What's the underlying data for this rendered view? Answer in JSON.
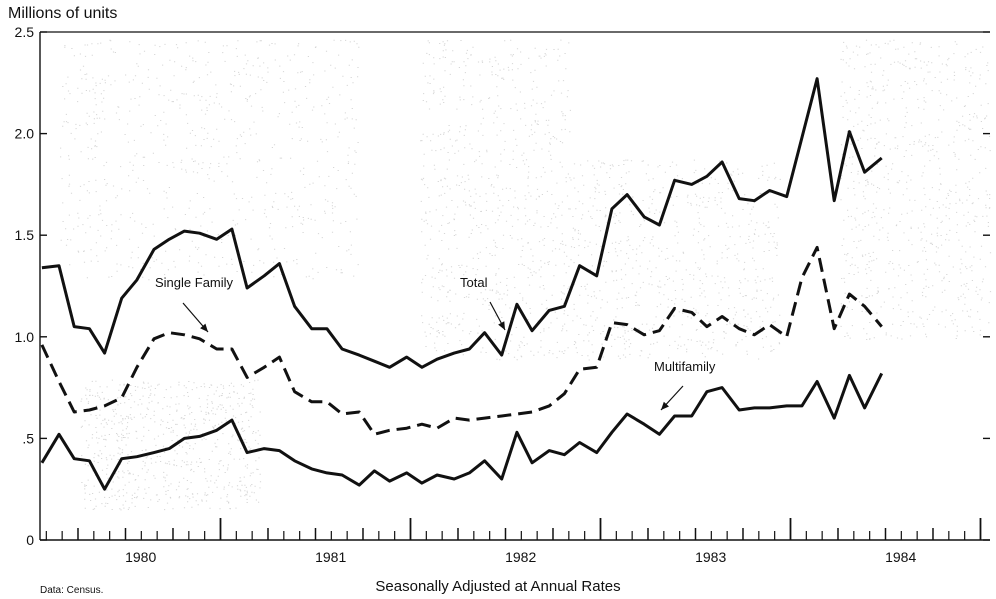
{
  "chart_data": {
    "type": "line",
    "title": "",
    "unit_label": "Millions of units",
    "xlabel": "Seasonally Adjusted at Annual Rates",
    "source": "Data: Census.",
    "ylim": [
      0,
      2.5
    ],
    "y_ticks": [
      0,
      0.5,
      1.0,
      1.5,
      2.0,
      2.5
    ],
    "y_tick_labels": [
      "0",
      ".5",
      "1.0",
      "1.5",
      "2.0",
      "2.5"
    ],
    "xlim": [
      1979.55,
      1984.55
    ],
    "x_ticks": [
      1980,
      1981,
      1982,
      1983,
      1984
    ],
    "x_tick_labels": [
      "1980",
      "1981",
      "1982",
      "1983",
      "1984"
    ],
    "grid": false,
    "series": [
      {
        "name": "Total",
        "style": "solid",
        "x": [
          1979.56,
          1979.65,
          1979.73,
          1979.81,
          1979.89,
          1979.98,
          1980.06,
          1980.15,
          1980.23,
          1980.31,
          1980.39,
          1980.48,
          1980.56,
          1980.64,
          1980.73,
          1980.81,
          1980.89,
          1980.98,
          1981.06,
          1981.14,
          1981.23,
          1981.31,
          1981.39,
          1981.48,
          1981.56,
          1981.64,
          1981.73,
          1981.81,
          1981.89,
          1981.98,
          1982.06,
          1982.14,
          1982.23,
          1982.31,
          1982.39,
          1982.48,
          1982.56,
          1982.64,
          1982.73,
          1982.81,
          1982.89,
          1982.98,
          1983.06,
          1983.14,
          1983.23,
          1983.31,
          1983.39,
          1983.48,
          1983.56,
          1983.64,
          1983.73,
          1983.81,
          1983.89,
          1983.98
        ],
        "values": [
          1.34,
          1.35,
          1.05,
          1.04,
          0.92,
          1.19,
          1.28,
          1.43,
          1.48,
          1.52,
          1.51,
          1.48,
          1.53,
          1.24,
          1.3,
          1.36,
          1.15,
          1.04,
          1.04,
          0.94,
          0.91,
          0.88,
          0.85,
          0.9,
          0.85,
          0.89,
          0.92,
          0.94,
          1.02,
          0.91,
          1.16,
          1.03,
          1.13,
          1.15,
          1.35,
          1.3,
          1.63,
          1.7,
          1.59,
          1.55,
          1.77,
          1.75,
          1.79,
          1.86,
          1.68,
          1.67,
          1.72,
          1.69,
          1.98,
          2.27,
          1.67,
          2.01,
          1.81,
          1.88
        ]
      },
      {
        "name": "Single Family",
        "style": "dashed",
        "x": [
          1979.56,
          1979.65,
          1979.73,
          1979.81,
          1979.89,
          1979.98,
          1980.06,
          1980.15,
          1980.23,
          1980.31,
          1980.39,
          1980.48,
          1980.56,
          1980.64,
          1980.73,
          1980.81,
          1980.89,
          1980.98,
          1981.06,
          1981.14,
          1981.23,
          1981.31,
          1981.39,
          1981.48,
          1981.56,
          1981.64,
          1981.73,
          1981.81,
          1981.89,
          1981.98,
          1982.06,
          1982.14,
          1982.23,
          1982.31,
          1982.39,
          1982.48,
          1982.56,
          1982.64,
          1982.73,
          1982.81,
          1982.89,
          1982.98,
          1983.06,
          1983.14,
          1983.23,
          1983.31,
          1983.39,
          1983.48,
          1983.56,
          1983.64,
          1983.73,
          1983.81,
          1983.89,
          1983.98
        ],
        "values": [
          0.96,
          0.78,
          0.63,
          0.64,
          0.66,
          0.7,
          0.85,
          0.99,
          1.02,
          1.01,
          0.99,
          0.94,
          0.94,
          0.8,
          0.85,
          0.9,
          0.73,
          0.68,
          0.68,
          0.62,
          0.63,
          0.52,
          0.54,
          0.55,
          0.57,
          0.55,
          0.6,
          0.59,
          0.6,
          0.61,
          0.62,
          0.63,
          0.66,
          0.72,
          0.84,
          0.85,
          1.07,
          1.06,
          1.01,
          1.03,
          1.14,
          1.12,
          1.05,
          1.1,
          1.04,
          1.01,
          1.06,
          1.0,
          1.29,
          1.44,
          1.04,
          1.21,
          1.15,
          1.05
        ]
      },
      {
        "name": "Multifamily",
        "style": "solid",
        "x": [
          1979.56,
          1979.65,
          1979.73,
          1979.81,
          1979.89,
          1979.98,
          1980.06,
          1980.15,
          1980.23,
          1980.31,
          1980.39,
          1980.48,
          1980.56,
          1980.64,
          1980.73,
          1980.81,
          1980.89,
          1980.98,
          1981.06,
          1981.14,
          1981.23,
          1981.31,
          1981.39,
          1981.48,
          1981.56,
          1981.64,
          1981.73,
          1981.81,
          1981.89,
          1981.98,
          1982.06,
          1982.14,
          1982.23,
          1982.31,
          1982.39,
          1982.48,
          1982.56,
          1982.64,
          1982.73,
          1982.81,
          1982.89,
          1982.98,
          1983.06,
          1983.14,
          1983.23,
          1983.31,
          1983.39,
          1983.48,
          1983.56,
          1983.64,
          1983.73,
          1983.81,
          1983.89,
          1983.98
        ],
        "values": [
          0.38,
          0.52,
          0.4,
          0.39,
          0.25,
          0.4,
          0.41,
          0.43,
          0.45,
          0.5,
          0.51,
          0.54,
          0.59,
          0.43,
          0.45,
          0.44,
          0.39,
          0.35,
          0.33,
          0.32,
          0.27,
          0.34,
          0.29,
          0.33,
          0.28,
          0.32,
          0.3,
          0.33,
          0.39,
          0.3,
          0.53,
          0.38,
          0.44,
          0.42,
          0.48,
          0.43,
          0.53,
          0.62,
          0.57,
          0.52,
          0.61,
          0.61,
          0.73,
          0.75,
          0.64,
          0.65,
          0.65,
          0.66,
          0.66,
          0.78,
          0.6,
          0.81,
          0.65,
          0.82
        ]
      }
    ],
    "annotations": [
      {
        "text": "Single Family",
        "series": "Single Family"
      },
      {
        "text": "Total",
        "series": "Total"
      },
      {
        "text": "Multifamily",
        "series": "Multifamily"
      }
    ],
    "colors": {
      "line": "#111111",
      "background": "#ffffff",
      "stipple": "#b5b5b5"
    }
  }
}
